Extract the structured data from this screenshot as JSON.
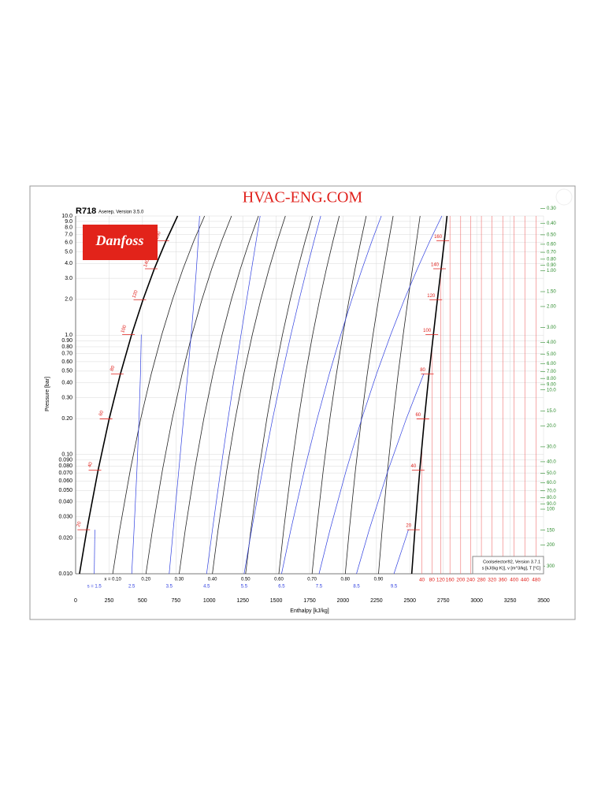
{
  "chart_data": {
    "type": "ph-diagram",
    "title": "HVAC-ENG.COM",
    "refrigerant": "R718",
    "version": "Aserep, Version 3.5.0",
    "logo": "Danfoss",
    "y_label": "Pressure [bar]",
    "x_label": "Enthalpy [kJ/kg]",
    "footer": [
      "Coolselector®2, Version 3.7.1",
      "s [kJ/(kg·K)], v [m^3/kg], T [°C]"
    ],
    "log_y": true,
    "grid": true,
    "xlim": [
      0,
      3500
    ],
    "ylim": [
      0.01,
      10
    ],
    "xticks": [
      0,
      250,
      500,
      750,
      1000,
      1250,
      1500,
      1750,
      2000,
      2250,
      2500,
      2750,
      3000,
      3250,
      3500
    ],
    "yticks": [
      {
        "value": 10,
        "label": "10.0"
      },
      {
        "value": 9,
        "label": "9.0"
      },
      {
        "value": 8,
        "label": "8.0"
      },
      {
        "value": 7,
        "label": "7.0"
      },
      {
        "value": 6,
        "label": "6.0"
      },
      {
        "value": 5,
        "label": "5.0"
      },
      {
        "value": 4,
        "label": "4.0"
      },
      {
        "value": 3,
        "label": "3.0"
      },
      {
        "value": 2,
        "label": "2.0"
      },
      {
        "value": 1,
        "label": "1.0"
      },
      {
        "value": 0.9,
        "label": "0.90"
      },
      {
        "value": 0.8,
        "label": "0.80"
      },
      {
        "value": 0.7,
        "label": "0.70"
      },
      {
        "value": 0.6,
        "label": "0.60"
      },
      {
        "value": 0.5,
        "label": "0.50"
      },
      {
        "value": 0.4,
        "label": "0.40"
      },
      {
        "value": 0.3,
        "label": "0.30"
      },
      {
        "value": 0.2,
        "label": "0.20"
      },
      {
        "value": 0.1,
        "label": "0.10"
      },
      {
        "value": 0.09,
        "label": "0.090"
      },
      {
        "value": 0.08,
        "label": "0.080"
      },
      {
        "value": 0.07,
        "label": "0.070"
      },
      {
        "value": 0.06,
        "label": "0.060"
      },
      {
        "value": 0.05,
        "label": "0.050"
      },
      {
        "value": 0.04,
        "label": "0.040"
      },
      {
        "value": 0.03,
        "label": "0.030"
      },
      {
        "value": 0.02,
        "label": "0.020"
      },
      {
        "value": 0.01,
        "label": "0.010"
      }
    ],
    "series": [
      {
        "color": "#000000",
        "x": [
          29,
          84,
          168,
          251,
          335,
          419,
          504,
          589,
          676,
          763
        ],
        "values": [
          0.01,
          0.0234,
          0.0738,
          0.199,
          0.474,
          1.013,
          1.985,
          3.61,
          6.18,
          10
        ],
        "entropy": [
          1.106,
          1.2965,
          1.5724,
          1.8312,
          2.075,
          2.307,
          2.528,
          2.739,
          2.943,
          3.138
        ]
      },
      {
        "color": "#000000",
        "x": [
          2514,
          2538,
          2574,
          2609,
          2643,
          2676,
          2706,
          2734,
          2758,
          2778
        ],
        "values": [
          0.01,
          0.0234,
          0.0738,
          0.199,
          0.474,
          1.013,
          1.985,
          3.61,
          6.18,
          10
        ],
        "entropy": [
          9.975,
          9.666,
          9.256,
          8.908,
          8.611,
          8.355,
          8.13,
          7.93,
          7.75,
          7.585
        ]
      }
    ],
    "qualities": [
      {
        "value": 0.1,
        "label": "x = 0.10"
      },
      {
        "value": 0.2,
        "label": "0.20"
      },
      {
        "value": 0.3,
        "label": "0.30"
      },
      {
        "value": 0.4,
        "label": "0.40"
      },
      {
        "value": 0.5,
        "label": "0.50"
      },
      {
        "value": 0.6,
        "label": "0.60"
      },
      {
        "value": 0.7,
        "label": "0.70"
      },
      {
        "value": 0.8,
        "label": "0.80"
      },
      {
        "value": 0.9,
        "label": "0.90"
      }
    ],
    "entropies": [
      {
        "value": 1.5,
        "label": "s = 1.5"
      },
      2.5,
      3.5,
      4.5,
      5.5,
      6.5,
      7.5,
      8.5,
      9.5
    ],
    "isotherms": [
      20,
      40,
      60,
      80,
      100,
      120,
      140,
      160
    ],
    "superheated_isotherms": {
      "values": [
        40,
        80,
        120,
        160,
        200,
        240,
        280,
        320,
        360,
        400,
        440,
        480
      ],
      "h": [
        2590,
        2665,
        2730,
        2800,
        2880,
        2955,
        3035,
        3115,
        3195,
        3280,
        3360,
        3445
      ]
    },
    "isochores": {
      "values": [
        {
          "value": 0.3,
          "label": "0.30"
        },
        {
          "value": 0.4,
          "label": "0.40"
        },
        {
          "value": 0.5,
          "label": "0.50"
        },
        {
          "value": 0.6,
          "label": "0.60"
        },
        {
          "value": 0.7,
          "label": "0.70"
        },
        {
          "value": 0.8,
          "label": "0.80"
        },
        {
          "value": 0.9,
          "label": "0.90"
        },
        {
          "value": 1,
          "label": "1.00"
        },
        {
          "value": 1.5,
          "label": "1.50"
        },
        {
          "value": 2,
          "label": "2.00"
        },
        {
          "value": 3,
          "label": "3.00"
        },
        {
          "value": 4,
          "label": "4.00"
        },
        {
          "value": 5,
          "label": "5.00"
        },
        {
          "value": 6,
          "label": "6.00"
        },
        {
          "value": 7,
          "label": "7.00"
        },
        {
          "value": 8,
          "label": "8.00"
        },
        {
          "value": 9,
          "label": "9.00"
        },
        {
          "value": 10,
          "label": "10.0"
        },
        {
          "value": 15,
          "label": "15.0"
        },
        {
          "value": 20,
          "label": "20.0"
        },
        {
          "value": 30,
          "label": "30.0"
        },
        {
          "value": 40,
          "label": "40.0"
        },
        {
          "value": 50,
          "label": "50.0"
        },
        {
          "value": 60,
          "label": "60.0"
        },
        {
          "value": 70,
          "label": "70.0"
        },
        {
          "value": 80,
          "label": "80.0"
        },
        {
          "value": 90,
          "label": "90.0"
        },
        100,
        150,
        200,
        300
      ],
      "p": [
        11.58,
        8.69,
        6.95,
        5.79,
        4.96,
        4.34,
        3.86,
        3.48,
        2.32,
        1.74,
        1.16,
        0.869,
        0.695,
        0.579,
        0.496,
        0.434,
        0.386,
        0.348,
        0.232,
        0.174,
        0.116,
        0.0869,
        0.0695,
        0.0579,
        0.0496,
        0.0434,
        0.0386,
        0.0348,
        0.0232,
        0.0174,
        0.0116
      ]
    }
  }
}
